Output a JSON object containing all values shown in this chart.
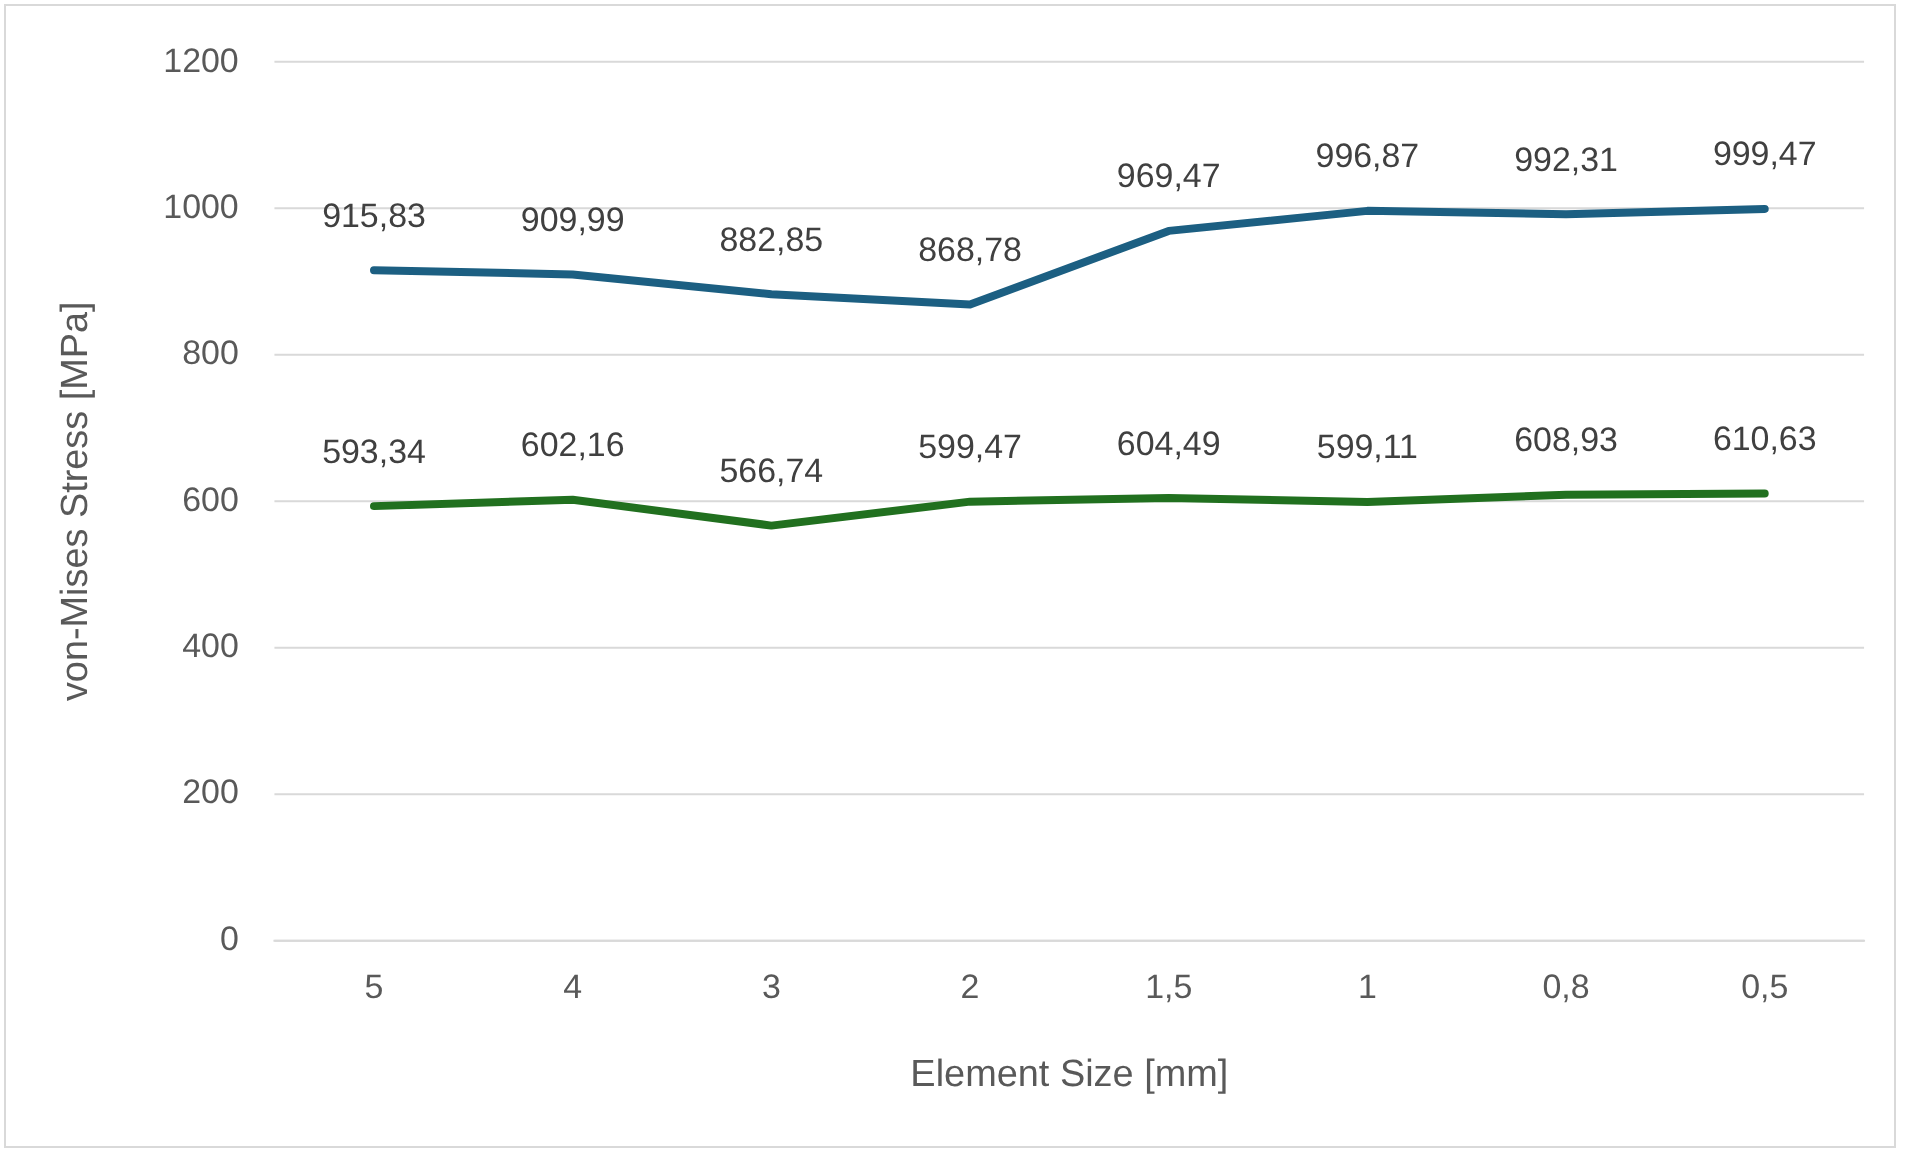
{
  "chart_data": {
    "type": "line",
    "xlabel": "Element Size [mm]",
    "ylabel": "von-Mises Stress [MPa]",
    "categories": [
      "5",
      "4",
      "3",
      "2",
      "1,5",
      "1",
      "0,8",
      "0,5"
    ],
    "series": [
      {
        "color": "#1c5f82",
        "values": [
          915.83,
          909.99,
          882.85,
          868.78,
          969.47,
          996.87,
          992.31,
          999.47
        ],
        "value_labels": [
          "915,83",
          "909,99",
          "882,85",
          "868,78",
          "969,47",
          "996,87",
          "992,31",
          "999,47"
        ]
      },
      {
        "color": "#21701f",
        "values": [
          593.34,
          602.16,
          566.74,
          599.47,
          604.49,
          599.11,
          608.93,
          610.63
        ],
        "value_labels": [
          "593,34",
          "602,16",
          "566,74",
          "599,47",
          "604,49",
          "599,11",
          "608,93",
          "610,63"
        ]
      }
    ],
    "ylim": [
      0,
      1200
    ],
    "yticks": [
      0,
      200,
      400,
      600,
      800,
      1000,
      1200
    ],
    "grid": "y",
    "legend": false,
    "marker": "none",
    "line_style": "solid"
  }
}
